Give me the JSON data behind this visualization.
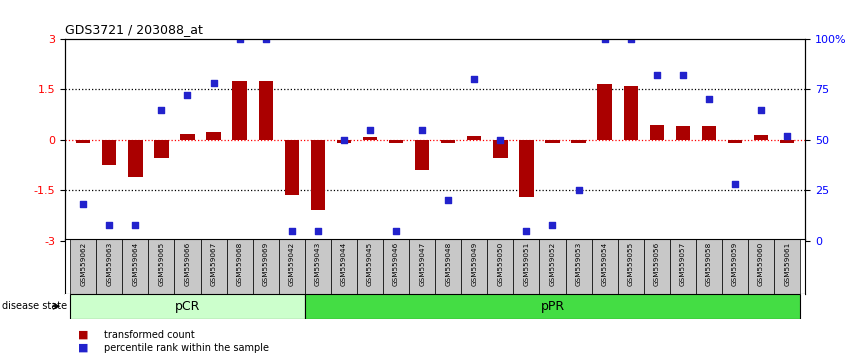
{
  "title": "GDS3721 / 203088_at",
  "samples": [
    "GSM559062",
    "GSM559063",
    "GSM559064",
    "GSM559065",
    "GSM559066",
    "GSM559067",
    "GSM559068",
    "GSM559069",
    "GSM559042",
    "GSM559043",
    "GSM559044",
    "GSM559045",
    "GSM559046",
    "GSM559047",
    "GSM559048",
    "GSM559049",
    "GSM559050",
    "GSM559051",
    "GSM559052",
    "GSM559053",
    "GSM559054",
    "GSM559055",
    "GSM559056",
    "GSM559057",
    "GSM559058",
    "GSM559059",
    "GSM559060",
    "GSM559061"
  ],
  "bar_values": [
    -0.08,
    -0.75,
    -1.1,
    -0.55,
    0.18,
    0.22,
    1.75,
    1.75,
    -1.65,
    -2.1,
    -0.08,
    0.08,
    -0.08,
    -0.9,
    -0.08,
    0.12,
    -0.55,
    -1.7,
    -0.08,
    -0.08,
    1.65,
    1.6,
    0.45,
    0.42,
    0.42,
    -0.08,
    0.15,
    -0.08
  ],
  "dot_values": [
    18,
    8,
    8,
    65,
    72,
    78,
    100,
    100,
    5,
    5,
    50,
    55,
    5,
    55,
    20,
    80,
    50,
    5,
    8,
    25,
    100,
    100,
    82,
    82,
    70,
    28,
    65,
    52
  ],
  "pCR_count": 9,
  "pCR_label": "pCR",
  "pPR_label": "pPR",
  "bar_color": "#AA0000",
  "dot_color": "#2222CC",
  "ylim": [
    -3,
    3
  ],
  "yticks_left": [
    -3,
    -1.5,
    0,
    1.5,
    3
  ],
  "yticks_right": [
    0,
    25,
    50,
    75,
    100
  ],
  "legend_bar": "transformed count",
  "legend_dot": "percentile rank within the sample",
  "pCR_color": "#CCFFCC",
  "pPR_color": "#44DD44",
  "disease_state_label": "disease state"
}
